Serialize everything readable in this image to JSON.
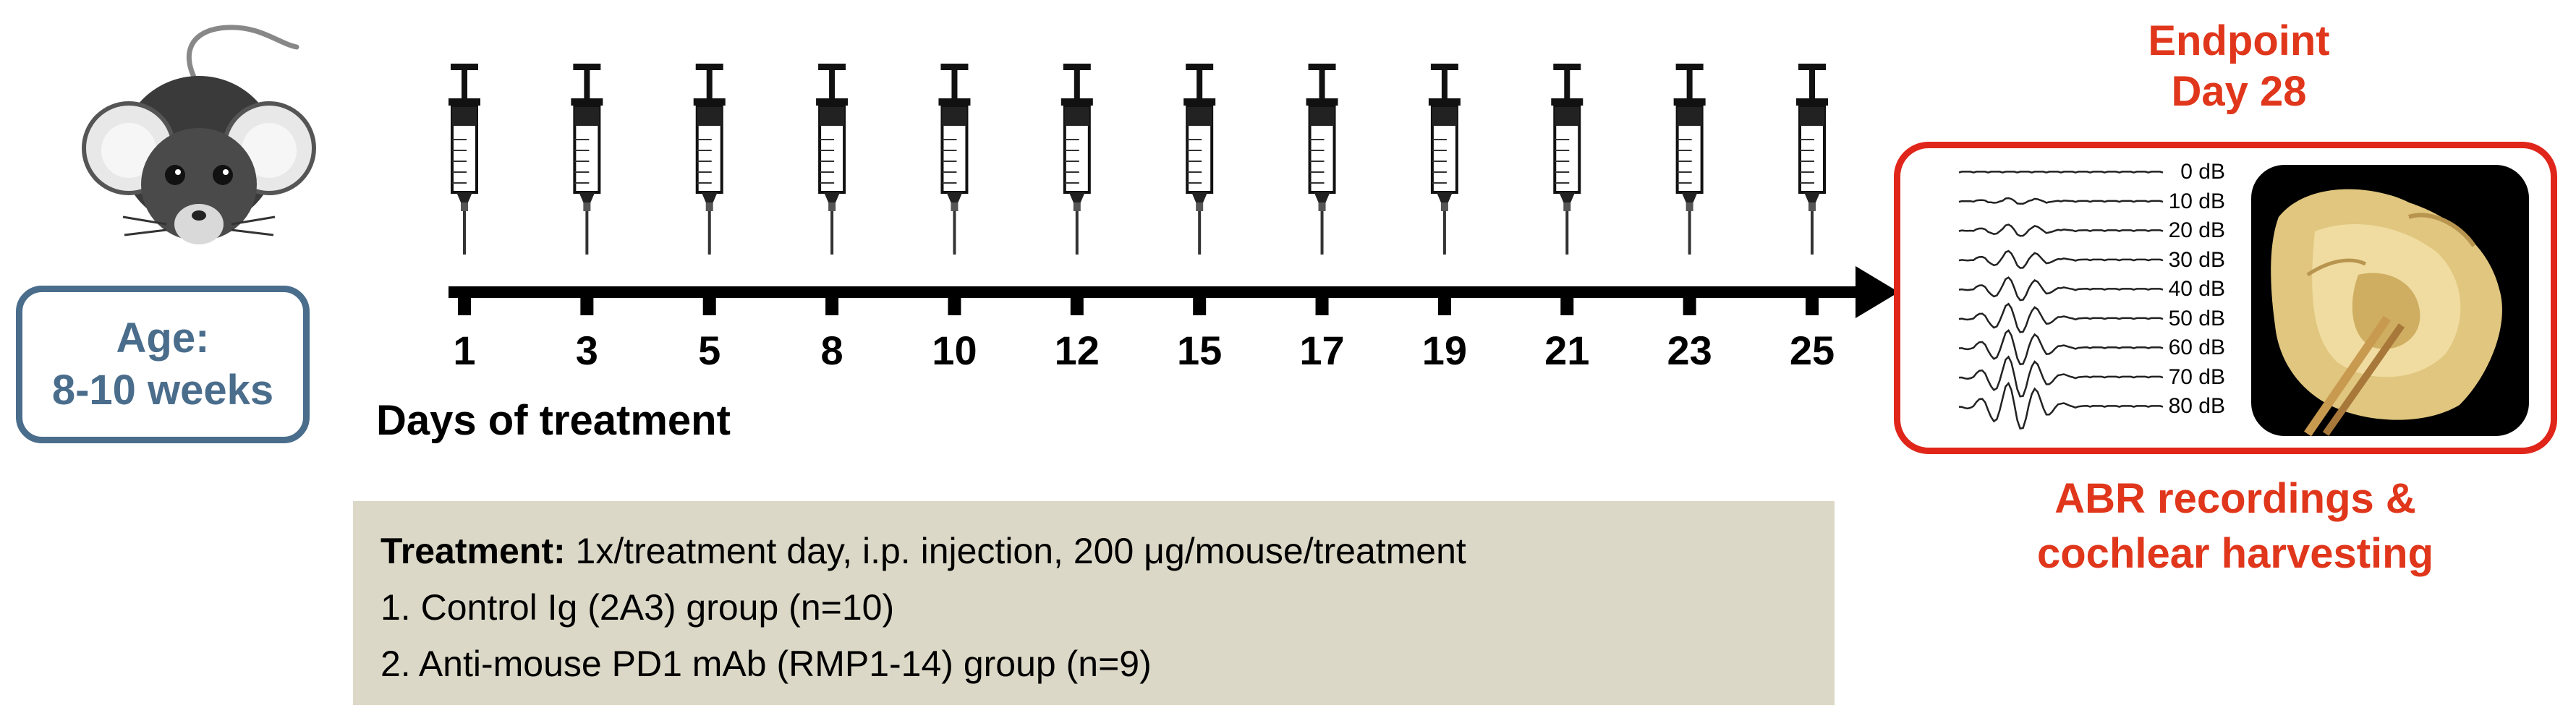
{
  "age_box": {
    "line1": "Age:",
    "line2": "8-10 weeks"
  },
  "timeline": {
    "days": [
      "1",
      "3",
      "5",
      "8",
      "10",
      "12",
      "15",
      "17",
      "19",
      "21",
      "23",
      "25"
    ],
    "label": "Days of treatment",
    "injections": 12
  },
  "treatment": {
    "heading": "Treatment:",
    "detail": " 1x/treatment day, i.p. injection, 200 μg/mouse/treatment",
    "groups": [
      "1. Control Ig (2A3) group (n=10)",
      "2. Anti-mouse PD1 mAb (RMP1-14) group (n=9)"
    ]
  },
  "endpoint": {
    "title_line1": "Endpoint",
    "title_line2": "Day 28",
    "abr_levels": [
      "0 dB",
      "10 dB",
      "20 dB",
      "30 dB",
      "40 dB",
      "50 dB",
      "60 dB",
      "70 dB",
      "80 dB"
    ],
    "outcome_line1": "ABR recordings &",
    "outcome_line2": "cochlear harvesting"
  },
  "colors": {
    "age_blue": "#4a6d8c",
    "endpoint_red": "#e0261b",
    "text_red": "#e0361b",
    "treatment_bg": "#dcd8c7"
  }
}
